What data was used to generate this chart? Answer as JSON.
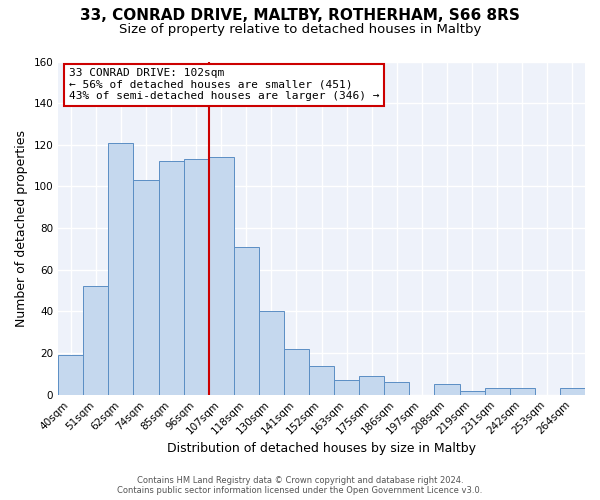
{
  "title": "33, CONRAD DRIVE, MALTBY, ROTHERHAM, S66 8RS",
  "subtitle": "Size of property relative to detached houses in Maltby",
  "xlabel": "Distribution of detached houses by size in Maltby",
  "ylabel": "Number of detached properties",
  "bar_labels": [
    "40sqm",
    "51sqm",
    "62sqm",
    "74sqm",
    "85sqm",
    "96sqm",
    "107sqm",
    "118sqm",
    "130sqm",
    "141sqm",
    "152sqm",
    "163sqm",
    "175sqm",
    "186sqm",
    "197sqm",
    "208sqm",
    "219sqm",
    "231sqm",
    "242sqm",
    "253sqm",
    "264sqm"
  ],
  "bar_values": [
    19,
    52,
    121,
    103,
    112,
    113,
    114,
    71,
    40,
    22,
    14,
    7,
    9,
    6,
    0,
    5,
    2,
    3,
    3,
    0,
    3
  ],
  "bar_color": "#c5d8ee",
  "bar_edge_color": "#5b8ec4",
  "vline_color": "#cc0000",
  "ylim": [
    0,
    160
  ],
  "yticks": [
    0,
    20,
    40,
    60,
    80,
    100,
    120,
    140,
    160
  ],
  "annotation_title": "33 CONRAD DRIVE: 102sqm",
  "annotation_line1": "← 56% of detached houses are smaller (451)",
  "annotation_line2": "43% of semi-detached houses are larger (346) →",
  "annotation_box_color": "#ffffff",
  "annotation_box_edge": "#cc0000",
  "footer1": "Contains HM Land Registry data © Crown copyright and database right 2024.",
  "footer2": "Contains public sector information licensed under the Open Government Licence v3.0.",
  "bg_color": "#ffffff",
  "plot_bg_color": "#eef2fa",
  "grid_color": "#ffffff",
  "title_fontsize": 11,
  "subtitle_fontsize": 9.5,
  "axis_label_fontsize": 9,
  "tick_fontsize": 7.5,
  "footer_fontsize": 6
}
